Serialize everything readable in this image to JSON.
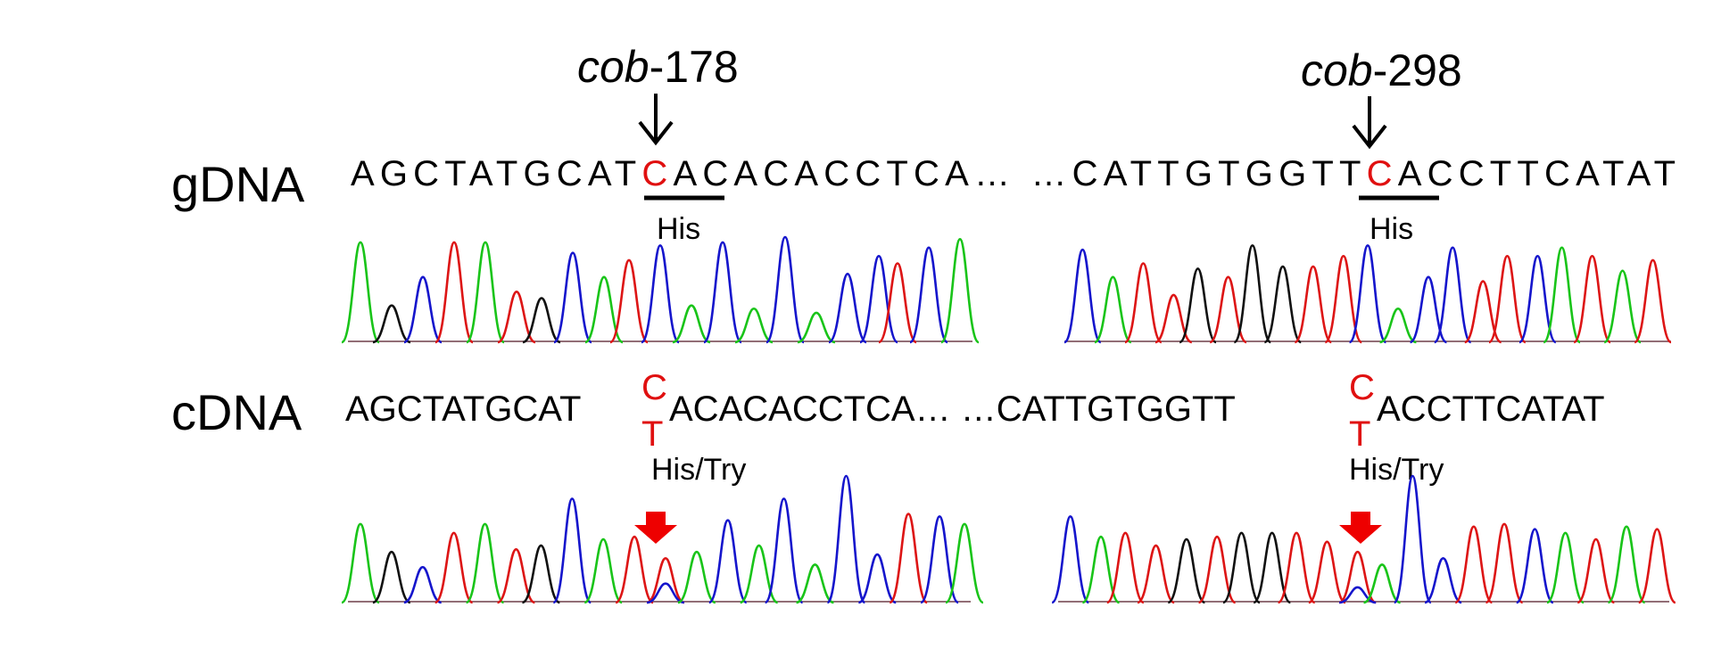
{
  "figure": {
    "colors": {
      "A": "#19c419",
      "C": "#1515cc",
      "G": "#111111",
      "T": "#dd1515",
      "highlight": "#e01010",
      "arrow_black": "#000000",
      "arrow_red": "#ee0000"
    },
    "sites": [
      {
        "prefix": "cob",
        "suffix": "-178"
      },
      {
        "prefix": "cob",
        "suffix": "-298"
      }
    ],
    "rows": [
      {
        "label": "gDNA",
        "segments": [
          {
            "pre": "AGCTATGCAT",
            "edit_top": "C",
            "edit_bottom": "",
            "post": "ACACACCTCA",
            "codon": "His"
          },
          {
            "pre": "CATTGTGGTT",
            "edit_top": "C",
            "edit_bottom": "",
            "post": "ACCTTCATAT",
            "codon": "His"
          }
        ],
        "gap": "… …"
      },
      {
        "label": "cDNA",
        "segments": [
          {
            "pre": "AGCTATGCAT",
            "edit_top": "C",
            "edit_bottom": "T",
            "post": "ACACACCTCA",
            "codon": "His/Try"
          },
          {
            "pre": "CATTGTGGTT",
            "edit_top": "C",
            "edit_bottom": "T",
            "post": "ACCTTCATAT",
            "codon": "His/Try"
          }
        ],
        "gap": "… …"
      }
    ],
    "chromatograms": [
      {
        "row": "gDNA",
        "panel": "left",
        "peaks": [
          [
            "A",
            0.02,
            0.95
          ],
          [
            "G",
            0.07,
            0.35
          ],
          [
            "C",
            0.12,
            0.62
          ],
          [
            "T",
            0.17,
            0.95
          ],
          [
            "A",
            0.22,
            0.95
          ],
          [
            "T",
            0.27,
            0.48
          ],
          [
            "G",
            0.31,
            0.42
          ],
          [
            "C",
            0.36,
            0.85
          ],
          [
            "A",
            0.41,
            0.62
          ],
          [
            "T",
            0.45,
            0.78
          ],
          [
            "C",
            0.5,
            0.92
          ],
          [
            "A",
            0.55,
            0.35
          ],
          [
            "C",
            0.6,
            0.95
          ],
          [
            "A",
            0.65,
            0.32
          ],
          [
            "C",
            0.7,
            1.0
          ],
          [
            "A",
            0.75,
            0.28
          ],
          [
            "C",
            0.8,
            0.65
          ],
          [
            "C",
            0.85,
            0.82
          ],
          [
            "T",
            0.88,
            0.75
          ],
          [
            "C",
            0.93,
            0.9
          ],
          [
            "A",
            0.98,
            0.98
          ]
        ]
      },
      {
        "row": "gDNA",
        "panel": "right",
        "peaks": [
          [
            "C",
            0.03,
            0.88
          ],
          [
            "A",
            0.08,
            0.62
          ],
          [
            "T",
            0.13,
            0.75
          ],
          [
            "T",
            0.18,
            0.45
          ],
          [
            "G",
            0.22,
            0.7
          ],
          [
            "T",
            0.27,
            0.62
          ],
          [
            "G",
            0.31,
            0.92
          ],
          [
            "G",
            0.36,
            0.72
          ],
          [
            "T",
            0.41,
            0.72
          ],
          [
            "T",
            0.46,
            0.82
          ],
          [
            "C",
            0.5,
            0.92
          ],
          [
            "A",
            0.55,
            0.32
          ],
          [
            "C",
            0.6,
            0.62
          ],
          [
            "C",
            0.64,
            0.9
          ],
          [
            "T",
            0.69,
            0.58
          ],
          [
            "T",
            0.73,
            0.82
          ],
          [
            "C",
            0.78,
            0.82
          ],
          [
            "A",
            0.82,
            0.9
          ],
          [
            "T",
            0.87,
            0.82
          ],
          [
            "A",
            0.92,
            0.68
          ],
          [
            "T",
            0.97,
            0.78
          ]
        ]
      },
      {
        "row": "cDNA",
        "panel": "left",
        "peaks": [
          [
            "A",
            0.02,
            0.62
          ],
          [
            "G",
            0.07,
            0.4
          ],
          [
            "C",
            0.12,
            0.28
          ],
          [
            "T",
            0.17,
            0.55
          ],
          [
            "A",
            0.22,
            0.62
          ],
          [
            "T",
            0.27,
            0.42
          ],
          [
            "G",
            0.31,
            0.45
          ],
          [
            "C",
            0.36,
            0.82
          ],
          [
            "A",
            0.41,
            0.5
          ],
          [
            "T",
            0.46,
            0.52
          ],
          [
            "T",
            0.51,
            0.35
          ],
          [
            "C",
            0.51,
            0.15
          ],
          [
            "A",
            0.56,
            0.4
          ],
          [
            "C",
            0.61,
            0.65
          ],
          [
            "A",
            0.66,
            0.45
          ],
          [
            "C",
            0.7,
            0.82
          ],
          [
            "A",
            0.75,
            0.3
          ],
          [
            "C",
            0.8,
            1.0
          ],
          [
            "C",
            0.85,
            0.38
          ],
          [
            "T",
            0.9,
            0.7
          ],
          [
            "C",
            0.95,
            0.68
          ],
          [
            "A",
            0.99,
            0.62
          ]
        ]
      },
      {
        "row": "cDNA",
        "panel": "right",
        "peaks": [
          [
            "C",
            0.02,
            0.68
          ],
          [
            "A",
            0.07,
            0.52
          ],
          [
            "T",
            0.11,
            0.55
          ],
          [
            "T",
            0.16,
            0.45
          ],
          [
            "G",
            0.21,
            0.5
          ],
          [
            "T",
            0.26,
            0.52
          ],
          [
            "G",
            0.3,
            0.55
          ],
          [
            "G",
            0.35,
            0.55
          ],
          [
            "T",
            0.39,
            0.55
          ],
          [
            "T",
            0.44,
            0.48
          ],
          [
            "T",
            0.49,
            0.4
          ],
          [
            "C",
            0.49,
            0.12
          ],
          [
            "A",
            0.53,
            0.3
          ],
          [
            "C",
            0.58,
            1.0
          ],
          [
            "C",
            0.63,
            0.35
          ],
          [
            "T",
            0.68,
            0.6
          ],
          [
            "T",
            0.73,
            0.62
          ],
          [
            "C",
            0.78,
            0.58
          ],
          [
            "A",
            0.83,
            0.55
          ],
          [
            "T",
            0.88,
            0.5
          ],
          [
            "A",
            0.93,
            0.6
          ],
          [
            "T",
            0.98,
            0.58
          ]
        ]
      }
    ]
  }
}
